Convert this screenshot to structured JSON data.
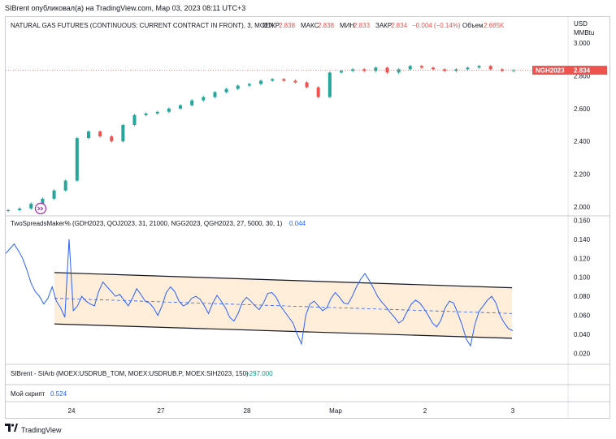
{
  "header": {
    "text": "SIBrent опубликовал(а) на TradingView.com, Мар 03, 2023 08:11 UTC+3"
  },
  "footer": {
    "logo_text": "TradingView"
  },
  "panes": {
    "price": {
      "title": "NATURAL GAS FUTURES (CONTINUOUS: CURRENT CONTRACT IN FRONT), 3, MOEX",
      "open_label": "ОТКР",
      "open_value": "2.838",
      "high_label": "МАКС",
      "high_value": "2.838",
      "low_label": "МИН",
      "low_value": "2.833",
      "close_label": "ЗАКР",
      "close_value": "2.834",
      "change_value": "−0.004 (−0.14%)",
      "volume_label": "Объем",
      "volume_value": "2.685K",
      "currency": "USD",
      "unit": "MMBtu",
      "last_tag_symbol": "NGH2023",
      "last_tag_price": "2.834"
    },
    "spread": {
      "title": "TwoSpreadsMaker% (GDH2023, QOJ2023, 31, 21000, NGG2023, QGH2023, 27, 5000, 30, 1)",
      "value": "0.044"
    },
    "sib": {
      "title": "SIBrent - SIArb (MOEX:USDRUB_TOM, MOEX:USDRUB.P, MOEX:SIH2023, 150)",
      "value": "−297.000"
    },
    "script": {
      "title": "Мой скрипт",
      "value": "0.524"
    }
  },
  "x_axis_labels": [
    "24",
    "27",
    "28",
    "Мар",
    "2",
    "3"
  ],
  "colors": {
    "up": "#26a69a",
    "down": "#ef5350",
    "spread_line": "#2962ff",
    "channel_fill": "#fde9cf",
    "channel_border": "#131722",
    "tag_bg": "#ef5350",
    "green_value": "#089981",
    "blue_value": "#2962ff"
  },
  "chart_data": [
    {
      "type": "candlestick",
      "series": [
        {
          "name": "NGH2023",
          "close": [
            1.98,
            1.99,
            2.02,
            2.05,
            2.1,
            2.16,
            2.42,
            2.46,
            2.43,
            2.4,
            2.5,
            2.56,
            2.57,
            2.58,
            2.6,
            2.62,
            2.65,
            2.67,
            2.7,
            2.72,
            2.74,
            2.75,
            2.77,
            2.78,
            2.77,
            2.76,
            2.73,
            2.67,
            2.82,
            2.83,
            2.84,
            2.83,
            2.85,
            2.82,
            2.84,
            2.86,
            2.85,
            2.84,
            2.83,
            2.84,
            2.85,
            2.86,
            2.84,
            2.83,
            2.834
          ]
        }
      ],
      "ylim": [
        1.97,
        3.02
      ],
      "y_ticks": [
        2.0,
        2.2,
        2.4,
        2.6,
        2.8,
        3.0
      ],
      "y_tick_labels": [
        "2.000",
        "2.200",
        "2.400",
        "2.600",
        "2.800",
        "3.000"
      ],
      "grid": false
    },
    {
      "type": "line",
      "series": [
        {
          "name": "TwoSpreadsMaker%",
          "values": [
            0.125,
            0.13,
            0.135,
            0.128,
            0.12,
            0.108,
            0.094,
            0.085,
            0.08,
            0.072,
            0.078,
            0.09,
            0.075,
            0.068,
            0.058,
            0.14,
            0.065,
            0.07,
            0.08,
            0.075,
            0.072,
            0.07,
            0.085,
            0.095,
            0.09,
            0.085,
            0.08,
            0.082,
            0.076,
            0.07,
            0.078,
            0.088,
            0.082,
            0.075,
            0.073,
            0.068,
            0.06,
            0.07,
            0.084,
            0.09,
            0.085,
            0.075,
            0.07,
            0.072,
            0.078,
            0.08,
            0.077,
            0.07,
            0.062,
            0.073,
            0.081,
            0.075,
            0.068,
            0.058,
            0.054,
            0.062,
            0.074,
            0.079,
            0.075,
            0.07,
            0.066,
            0.073,
            0.083,
            0.084,
            0.079,
            0.07,
            0.064,
            0.058,
            0.052,
            0.04,
            0.03,
            0.06,
            0.072,
            0.075,
            0.07,
            0.065,
            0.068,
            0.078,
            0.084,
            0.079,
            0.073,
            0.072,
            0.08,
            0.09,
            0.098,
            0.104,
            0.097,
            0.089,
            0.08,
            0.074,
            0.069,
            0.063,
            0.058,
            0.052,
            0.055,
            0.064,
            0.072,
            0.076,
            0.073,
            0.067,
            0.06,
            0.052,
            0.048,
            0.055,
            0.068,
            0.075,
            0.073,
            0.062,
            0.05,
            0.035,
            0.028,
            0.05,
            0.064,
            0.07,
            0.076,
            0.08,
            0.073,
            0.06,
            0.052,
            0.046,
            0.044
          ]
        }
      ],
      "channel": {
        "upper": [
          0.105,
          0.089
        ],
        "lower": [
          0.051,
          0.036
        ],
        "mid": [
          0.078,
          0.062
        ]
      },
      "ylim": [
        0.012,
        0.162
      ],
      "y_ticks": [
        0.02,
        0.04,
        0.06,
        0.08,
        0.1,
        0.12,
        0.14,
        0.16
      ],
      "y_tick_labels": [
        "0.020",
        "0.040",
        "0.060",
        "0.080",
        "0.100",
        "0.120",
        "0.140",
        "0.160"
      ]
    }
  ]
}
